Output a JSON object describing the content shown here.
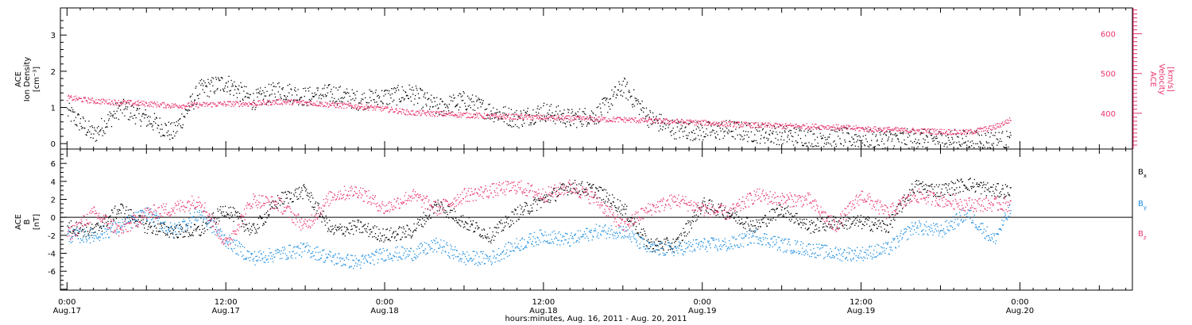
{
  "chart_data": [
    {
      "type": "scatter",
      "panel": "top",
      "ylabel_left": [
        "ACE",
        "Ion Density",
        "[cm⁻³]"
      ],
      "ylabel_right": [
        "ACE",
        "Velocity",
        "[km/s]"
      ],
      "yticks_left": [
        "0",
        "1",
        "2",
        "3"
      ],
      "yticks_right": [
        "400",
        "500",
        "600"
      ],
      "ylim_left": [
        -0.15,
        3.75
      ],
      "ylim_right": [
        310,
        665
      ],
      "grid": false,
      "colors": {
        "density": "#000000",
        "velocity": "#e8336b"
      },
      "series": [
        {
          "axis": "left",
          "color": "#000000",
          "knots_h": [
            0,
            2,
            4,
            6,
            8,
            10,
            12,
            14,
            16,
            18,
            20,
            22,
            24,
            26,
            28,
            30,
            32,
            34,
            36,
            38,
            40,
            42,
            44,
            46,
            48,
            50,
            52,
            54,
            56,
            58,
            60,
            62,
            64,
            66,
            68,
            70,
            71.3
          ],
          "values": [
            0.9,
            0.25,
            1.0,
            0.7,
            0.3,
            1.5,
            1.7,
            1.2,
            1.5,
            1.3,
            1.4,
            1.2,
            1.3,
            1.4,
            1.0,
            1.2,
            0.9,
            0.7,
            0.9,
            0.7,
            0.8,
            1.6,
            0.7,
            0.4,
            0.35,
            0.4,
            0.3,
            0.25,
            0.2,
            0.2,
            0.15,
            0.15,
            0.15,
            0.12,
            0.12,
            0.1,
            0.1
          ]
        },
        {
          "axis": "right",
          "color": "#e8336b",
          "knots_h": [
            0,
            2,
            4,
            6,
            8,
            10,
            12,
            14,
            16,
            18,
            20,
            22,
            24,
            26,
            28,
            30,
            32,
            34,
            36,
            38,
            40,
            42,
            44,
            46,
            48,
            50,
            52,
            54,
            56,
            58,
            60,
            62,
            64,
            66,
            68,
            70,
            71.3
          ],
          "values": [
            440,
            432,
            428,
            425,
            420,
            422,
            425,
            425,
            430,
            428,
            422,
            418,
            412,
            402,
            400,
            397,
            393,
            392,
            390,
            388,
            386,
            385,
            382,
            380,
            377,
            374,
            371,
            369,
            368,
            366,
            362,
            360,
            357,
            355,
            353,
            365,
            385
          ]
        }
      ]
    },
    {
      "type": "scatter",
      "panel": "bottom",
      "ylabel_left": [
        "ACE",
        "B",
        "[nT]"
      ],
      "yticks_left": [
        "-6",
        "-4",
        "-2",
        "0",
        "2",
        "4",
        "6"
      ],
      "ylim_left": [
        -8.1,
        7.6
      ],
      "zero_line": true,
      "grid": false,
      "legend": "right",
      "series": [
        {
          "name": "B",
          "sub": "x",
          "color": "#000000",
          "knots_h": [
            0,
            2,
            4,
            6,
            8,
            10,
            12,
            14,
            16,
            18,
            20,
            22,
            24,
            26,
            28,
            30,
            32,
            34,
            36,
            38,
            40,
            42,
            44,
            46,
            48,
            50,
            52,
            54,
            56,
            58,
            60,
            62,
            64,
            66,
            68,
            70,
            71.3
          ],
          "values": [
            -1.0,
            -1.5,
            1.0,
            -1.0,
            -1.5,
            -1.5,
            1.0,
            -1.5,
            2.0,
            3.0,
            -1.5,
            -1.0,
            -2.0,
            -1.5,
            1.5,
            -0.5,
            -2.0,
            0.5,
            2.0,
            3.5,
            3.0,
            1.0,
            -3.0,
            -3.0,
            1.5,
            0.5,
            -1.0,
            1.0,
            -1.0,
            -0.5,
            -0.5,
            -1.0,
            3.5,
            3.0,
            3.8,
            3.0,
            3.0
          ]
        },
        {
          "name": "B",
          "sub": "y",
          "color": "#1a8ce0",
          "knots_h": [
            0,
            2,
            4,
            6,
            8,
            10,
            12,
            14,
            16,
            18,
            20,
            22,
            24,
            26,
            28,
            30,
            32,
            34,
            36,
            38,
            40,
            42,
            44,
            46,
            48,
            50,
            52,
            54,
            56,
            58,
            60,
            62,
            64,
            66,
            68,
            70,
            71.3
          ],
          "values": [
            -2.0,
            -2.0,
            -1.0,
            0.5,
            -1.5,
            0.5,
            -2.5,
            -4.5,
            -4.0,
            -3.5,
            -4.5,
            -5.0,
            -4.0,
            -4.0,
            -3.0,
            -4.5,
            -4.5,
            -3.0,
            -2.0,
            -2.5,
            -1.5,
            -1.5,
            -3.5,
            -3.5,
            -3.0,
            -3.0,
            -2.0,
            -3.0,
            -3.5,
            -4.0,
            -4.0,
            -3.5,
            -1.0,
            -1.5,
            0.5,
            -2.5,
            1.0
          ]
        },
        {
          "name": "B",
          "sub": "z",
          "color": "#e8336b",
          "knots_h": [
            0,
            2,
            4,
            6,
            8,
            10,
            12,
            14,
            16,
            18,
            20,
            22,
            24,
            26,
            28,
            30,
            32,
            34,
            36,
            38,
            40,
            42,
            44,
            46,
            48,
            50,
            52,
            54,
            56,
            58,
            60,
            62,
            64,
            66,
            68,
            70,
            71.3
          ],
          "values": [
            -2.0,
            0.5,
            -1.5,
            0.5,
            1.0,
            2.0,
            -3.0,
            2.0,
            1.5,
            -1.0,
            2.5,
            3.0,
            1.0,
            2.5,
            1.0,
            2.5,
            3.0,
            3.5,
            2.5,
            3.5,
            2.0,
            -1.0,
            1.0,
            2.0,
            1.0,
            0.5,
            2.5,
            2.0,
            2.0,
            -1.0,
            2.5,
            0.5,
            2.5,
            2.0,
            1.5,
            1.5,
            1.5
          ]
        }
      ]
    }
  ],
  "x_axis": {
    "ticks": [
      {
        "time": "0:00",
        "date": "Aug.17",
        "hours": 0
      },
      {
        "time": "12:00",
        "date": "Aug.17",
        "hours": 12
      },
      {
        "time": "0:00",
        "date": "Aug.18",
        "hours": 24
      },
      {
        "time": "12:00",
        "date": "Aug.18",
        "hours": 36
      },
      {
        "time": "0:00",
        "date": "Aug.19",
        "hours": 48
      },
      {
        "time": "12:00",
        "date": "Aug.19",
        "hours": 60
      },
      {
        "time": "0:00",
        "date": "Aug.20",
        "hours": 72
      }
    ],
    "xlim_hours": [
      -0.5,
      80.5
    ],
    "xlabel": "hours:minutes, Aug. 16, 2011 - Aug. 20, 2011"
  }
}
